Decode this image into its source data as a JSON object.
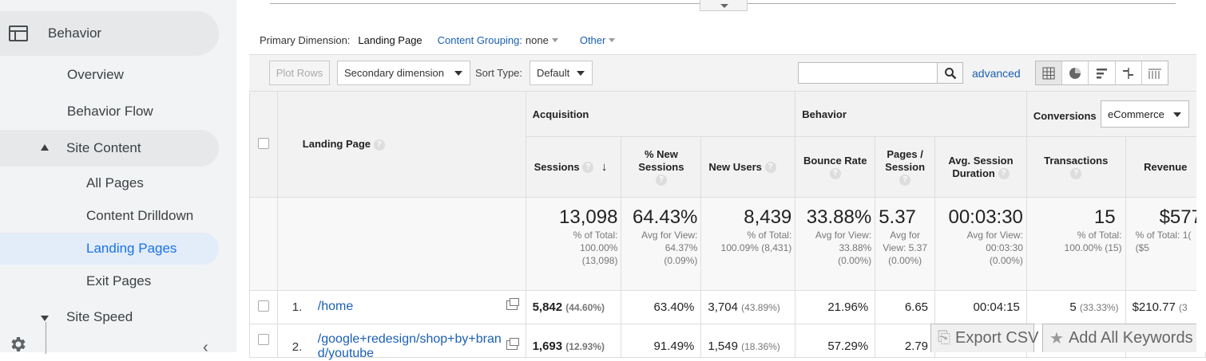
{
  "sidebar": {
    "section_label": "Behavior",
    "items": [
      "Overview",
      "Behavior Flow"
    ],
    "site_content_label": "Site Content",
    "site_content_items": [
      "All Pages",
      "Content Drilldown",
      "Landing Pages",
      "Exit Pages"
    ],
    "active_item": "Landing Pages",
    "site_speed_label": "Site Speed",
    "collapse_glyph": "‹"
  },
  "primary_dimension": {
    "label": "Primary Dimension:",
    "value": "Landing Page",
    "content_grouping_label": "Content Grouping:",
    "content_grouping_value": "none",
    "other_label": "Other"
  },
  "toolbar": {
    "plot_rows": "Plot Rows",
    "secondary_dimension": "Secondary dimension",
    "sort_type_label": "Sort Type:",
    "sort_type_value": "Default",
    "search_placeholder": "",
    "advanced": "advanced"
  },
  "table": {
    "groups": {
      "acquisition": "Acquisition",
      "behavior": "Behavior",
      "conversions": "Conversions",
      "conversions_select": "eCommerce"
    },
    "landing_page_header": "Landing Page",
    "columns": {
      "sessions": "Sessions",
      "new_sessions": "% New Sessions",
      "new_users": "New Users",
      "bounce_rate": "Bounce Rate",
      "pages_session": "Pages / Session",
      "avg_session": "Avg. Session Duration",
      "transactions": "Transactions",
      "revenue": "Revenue"
    },
    "totals": {
      "sessions": {
        "value": "13,098",
        "sub": "% of Total: 100.00% (13,098)"
      },
      "new_sessions": {
        "value": "64.43%",
        "sub": "Avg for View: 64.37% (0.09%)"
      },
      "new_users": {
        "value": "8,439",
        "sub": "% of Total: 100.09% (8,431)"
      },
      "bounce_rate": {
        "value": "33.88%",
        "sub": "Avg for View: 33.88% (0.00%)"
      },
      "pages_session": {
        "value": "5.37",
        "sub": "Avg for View: 5.37 (0.00%)"
      },
      "avg_session": {
        "value": "00:03:30",
        "sub": "Avg for View: 00:03:30 (0.00%)"
      },
      "transactions": {
        "value": "15",
        "sub": "% of Total: 100.00% (15)"
      },
      "revenue": {
        "value": "$577",
        "sub": "% of Total: 1( ($5"
      }
    },
    "rows": [
      {
        "num": "1.",
        "page": "/home",
        "sessions": "5,842",
        "sessions_pct": "(44.60%)",
        "new_sessions": "63.40%",
        "new_users": "3,704",
        "new_users_pct": "(43.89%)",
        "bounce_rate": "21.96%",
        "pages_session": "6.65",
        "avg_session": "00:04:15",
        "transactions": "5",
        "transactions_pct": "(33.33%)",
        "revenue": "$210.77",
        "revenue_pct": "(3"
      },
      {
        "num": "2.",
        "page": "/google+redesign/shop+by+brand/youtube",
        "sessions": "1,693",
        "sessions_pct": "(12.93%)",
        "new_sessions": "91.49%",
        "new_users": "1,549",
        "new_users_pct": "(18.36%)",
        "bounce_rate": "57.29%",
        "pages_session": "2.79"
      }
    ]
  },
  "floating": {
    "export_csv": "Export CSV",
    "add_keywords": "Add All Keywords"
  }
}
